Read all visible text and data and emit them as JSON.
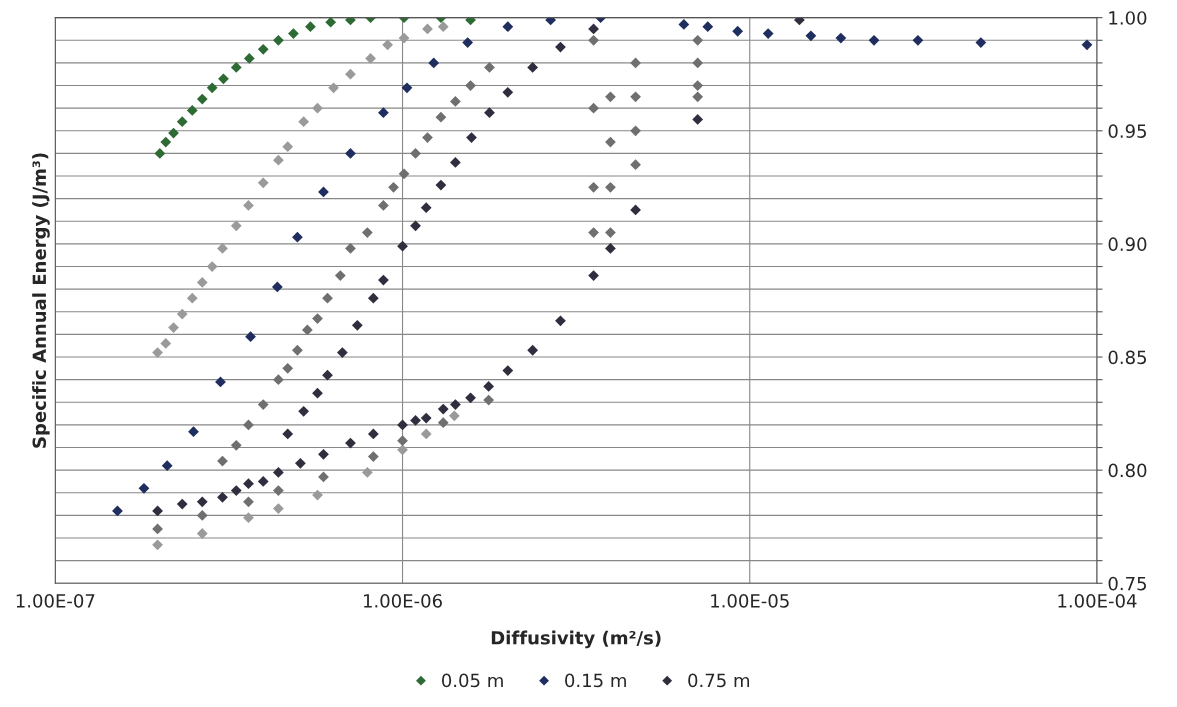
{
  "chart_data": {
    "type": "scatter",
    "xlabel": "Diffusivity (m²/s)",
    "ylabel": "Specific Annual Energy (J/m³)",
    "log": "x",
    "grid": true,
    "legend": "bottom",
    "marker": "diamond",
    "xlim": [
      1e-07,
      0.0001
    ],
    "xticks": [
      {
        "value": 1e-07,
        "label": "1.00E-07"
      },
      {
        "value": 1e-06,
        "label": "1.00E-06"
      },
      {
        "value": 1e-05,
        "label": "1.00E-05"
      },
      {
        "value": 0.0001,
        "label": "1.00E-04"
      }
    ],
    "ylim": [
      0.75,
      1.0
    ],
    "yticks": [
      {
        "value": 0.75,
        "label": "0.75"
      },
      {
        "value": 0.76,
        "label": null
      },
      {
        "value": 0.77,
        "label": null
      },
      {
        "value": 0.78,
        "label": null
      },
      {
        "value": 0.79,
        "label": null
      },
      {
        "value": 0.8,
        "label": "0.80"
      },
      {
        "value": 0.81,
        "label": null
      },
      {
        "value": 0.82,
        "label": null
      },
      {
        "value": 0.83,
        "label": null
      },
      {
        "value": 0.84,
        "label": null
      },
      {
        "value": 0.85,
        "label": "0.85"
      },
      {
        "value": 0.86,
        "label": null
      },
      {
        "value": 0.87,
        "label": null
      },
      {
        "value": 0.88,
        "label": null
      },
      {
        "value": 0.89,
        "label": null
      },
      {
        "value": 0.9,
        "label": "0.90"
      },
      {
        "value": 0.91,
        "label": null
      },
      {
        "value": 0.92,
        "label": null
      },
      {
        "value": 0.93,
        "label": null
      },
      {
        "value": 0.94,
        "label": null
      },
      {
        "value": 0.95,
        "label": "0.95"
      },
      {
        "value": 0.96,
        "label": null
      },
      {
        "value": 0.97,
        "label": null
      },
      {
        "value": 0.98,
        "label": null
      },
      {
        "value": 0.99,
        "label": null
      },
      {
        "value": 1.0,
        "label": "1.00"
      }
    ],
    "series": [
      {
        "color": "#9a9a9a",
        "x": [
          1.97e-07,
          2.08e-07,
          2.19e-07,
          2.32e-07,
          2.48e-07,
          2.65e-07,
          2.83e-07,
          3.03e-07,
          3.32e-07,
          3.6e-07,
          3.97e-07,
          4.39e-07,
          4.67e-07,
          5.19e-07,
          5.69e-07,
          6.33e-07,
          7.08e-07,
          8.09e-07,
          9.06e-07,
          1.01e-06,
          1.18e-06,
          1.31e-06,
          1.97e-07,
          2.65e-07,
          3.6e-07,
          4.39e-07,
          5.69e-07,
          7.92e-07,
          1e-06,
          1.17e-06,
          1.41e-06
        ],
        "values": [
          0.852,
          0.856,
          0.863,
          0.869,
          0.876,
          0.883,
          0.89,
          0.898,
          0.908,
          0.917,
          0.927,
          0.937,
          0.943,
          0.954,
          0.96,
          0.969,
          0.975,
          0.982,
          0.988,
          0.991,
          0.995,
          0.996,
          0.767,
          0.772,
          0.779,
          0.783,
          0.789,
          0.799,
          0.809,
          0.816,
          0.824
        ]
      },
      {
        "color": "#6f6f6f",
        "x": [
          3.03e-07,
          3.32e-07,
          3.6e-07,
          3.97e-07,
          4.39e-07,
          4.67e-07,
          4.98e-07,
          5.32e-07,
          5.69e-07,
          6.08e-07,
          6.62e-07,
          7.08e-07,
          7.92e-07,
          8.81e-07,
          9.42e-07,
          1.01e-06,
          1.09e-06,
          1.18e-06,
          1.29e-06,
          1.42e-06,
          1.57e-06,
          1.78e-06,
          1.97e-07,
          2.65e-07,
          3.6e-07,
          4.39e-07,
          5.92e-07,
          8.24e-07,
          1e-06,
          1.31e-06,
          1.77e-06,
          7.08e-06,
          7.08e-06,
          7.08e-06,
          7.08e-06,
          4.69e-06,
          4.69e-06,
          4.69e-06,
          4.69e-06,
          3.97e-06,
          3.97e-06,
          3.97e-06,
          3.97e-06,
          3.55e-06,
          3.55e-06,
          3.55e-06,
          3.55e-06
        ],
        "values": [
          0.804,
          0.811,
          0.82,
          0.829,
          0.84,
          0.845,
          0.853,
          0.862,
          0.867,
          0.876,
          0.886,
          0.898,
          0.905,
          0.917,
          0.925,
          0.931,
          0.94,
          0.947,
          0.956,
          0.963,
          0.97,
          0.978,
          0.774,
          0.78,
          0.786,
          0.791,
          0.797,
          0.806,
          0.813,
          0.821,
          0.831,
          0.99,
          0.98,
          0.97,
          0.965,
          0.935,
          0.95,
          0.965,
          0.98,
          0.905,
          0.925,
          0.945,
          0.965,
          0.905,
          0.925,
          0.96,
          0.99
        ]
      },
      {
        "name": "0.05 m",
        "color": "#2e6b34",
        "x": [
          2e-07,
          2.08e-07,
          2.19e-07,
          2.32e-07,
          2.48e-07,
          2.65e-07,
          2.83e-07,
          3.05e-07,
          3.32e-07,
          3.62e-07,
          3.97e-07,
          4.39e-07,
          4.85e-07,
          5.43e-07,
          6.21e-07,
          7.08e-07,
          8.09e-07,
          1.01e-06,
          1.29e-06,
          1.57e-06
        ],
        "values": [
          0.94,
          0.945,
          0.949,
          0.954,
          0.959,
          0.964,
          0.969,
          0.973,
          0.978,
          0.982,
          0.986,
          0.99,
          0.993,
          0.996,
          0.998,
          0.999,
          1.0,
          1.0,
          1.0,
          0.999
        ]
      },
      {
        "name": "0.15 m",
        "color": "#1f2e5e",
        "x": [
          1.51e-07,
          1.8e-07,
          2.1e-07,
          2.5e-07,
          2.99e-07,
          3.65e-07,
          4.36e-07,
          4.98e-07,
          5.92e-07,
          7.08e-07,
          8.81e-07,
          1.03e-06,
          1.23e-06,
          1.54e-06,
          2.01e-06,
          2.67e-06,
          3.72e-06,
          6.46e-06,
          7.57e-06,
          9.23e-06,
          1.13e-05,
          1.5e-05,
          1.83e-05,
          2.28e-05,
          3.05e-05,
          4.63e-05,
          9.36e-05
        ],
        "values": [
          0.782,
          0.792,
          0.802,
          0.817,
          0.839,
          0.859,
          0.881,
          0.903,
          0.923,
          0.94,
          0.958,
          0.969,
          0.98,
          0.989,
          0.996,
          0.999,
          1.0,
          0.997,
          0.996,
          0.994,
          0.993,
          0.992,
          0.991,
          0.99,
          0.99,
          0.989,
          0.988
        ]
      },
      {
        "name": "0.75 m",
        "color": "#2e2e3e",
        "x": [
          1.97e-07,
          2.32e-07,
          2.65e-07,
          3.03e-07,
          3.32e-07,
          3.6e-07,
          3.97e-07,
          4.39e-07,
          5.08e-07,
          5.92e-07,
          7.08e-07,
          8.24e-07,
          1e-06,
          1.09e-06,
          1.17e-06,
          1.31e-06,
          1.42e-06,
          1.57e-06,
          1.77e-06,
          2.01e-06,
          2.37e-06,
          2.85e-06,
          3.55e-06,
          3.97e-06,
          4.69e-06,
          7.08e-06,
          1.39e-05,
          4.67e-07,
          5.19e-07,
          5.69e-07,
          6.08e-07,
          6.71e-07,
          7.41e-07,
          8.24e-07,
          8.81e-07,
          1e-06,
          1.09e-06,
          1.17e-06,
          1.29e-06,
          1.42e-06,
          1.58e-06,
          1.78e-06,
          2.01e-06,
          2.37e-06,
          2.85e-06,
          3.55e-06
        ],
        "values": [
          0.782,
          0.785,
          0.786,
          0.788,
          0.791,
          0.794,
          0.795,
          0.799,
          0.803,
          0.807,
          0.812,
          0.816,
          0.82,
          0.822,
          0.823,
          0.827,
          0.829,
          0.832,
          0.837,
          0.844,
          0.853,
          0.866,
          0.886,
          0.898,
          0.915,
          0.955,
          0.999,
          0.816,
          0.826,
          0.834,
          0.842,
          0.852,
          0.864,
          0.876,
          0.884,
          0.899,
          0.908,
          0.916,
          0.926,
          0.936,
          0.947,
          0.958,
          0.967,
          0.978,
          0.987,
          0.995
        ]
      }
    ]
  }
}
